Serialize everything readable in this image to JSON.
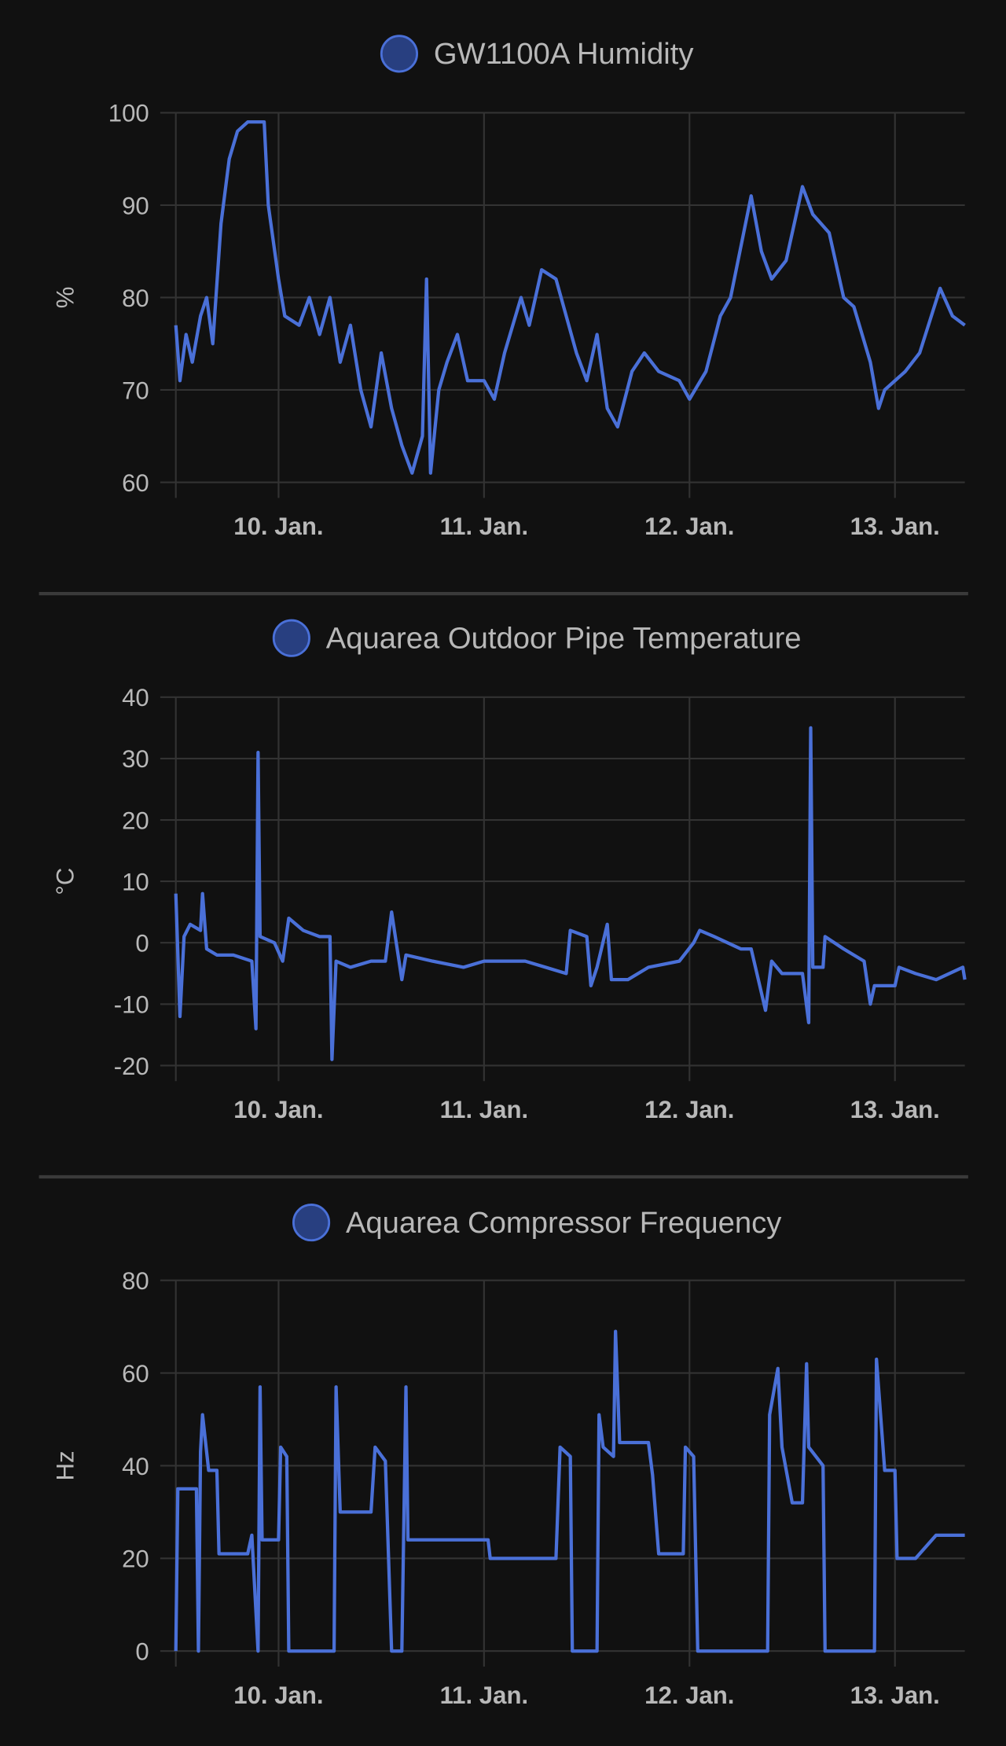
{
  "chart_data": [
    {
      "type": "line",
      "y_label": "%",
      "xlim": [
        9.5,
        13.34
      ],
      "xticks": [
        {
          "value": 10,
          "label": "10. Jan."
        },
        {
          "value": 11,
          "label": "11. Jan."
        },
        {
          "value": 12,
          "label": "12. Jan."
        },
        {
          "value": 13,
          "label": "13. Jan."
        }
      ],
      "ylim": [
        60,
        100
      ],
      "yticks": [
        60,
        70,
        80,
        90,
        100
      ],
      "grid": true,
      "x": [
        9.5,
        9.52,
        9.55,
        9.58,
        9.62,
        9.65,
        9.68,
        9.72,
        9.76,
        9.8,
        9.85,
        9.93,
        9.95,
        10.0,
        10.03,
        10.1,
        10.15,
        10.2,
        10.25,
        10.3,
        10.35,
        10.4,
        10.45,
        10.5,
        10.55,
        10.6,
        10.65,
        10.7,
        10.72,
        10.74,
        10.78,
        10.82,
        10.87,
        10.92,
        11.0,
        11.05,
        11.1,
        11.18,
        11.22,
        11.28,
        11.35,
        11.45,
        11.5,
        11.55,
        11.6,
        11.65,
        11.72,
        11.78,
        11.85,
        11.95,
        12.0,
        12.08,
        12.15,
        12.2,
        12.3,
        12.35,
        12.4,
        12.47,
        12.55,
        12.6,
        12.68,
        12.75,
        12.8,
        12.88,
        12.92,
        12.95,
        13.05,
        13.12,
        13.22,
        13.28,
        13.34
      ],
      "series": [
        {
          "name": "GW1100A Humidity",
          "color": "#4a70d8",
          "values": [
            77,
            71,
            76,
            73,
            78,
            80,
            75,
            88,
            95,
            98,
            99,
            99,
            90,
            82,
            78,
            77,
            80,
            76,
            80,
            73,
            77,
            70,
            66,
            74,
            68,
            64,
            61,
            65,
            82,
            61,
            70,
            73,
            76,
            71,
            71,
            69,
            74,
            80,
            77,
            83,
            82,
            74,
            71,
            76,
            68,
            66,
            72,
            74,
            72,
            71,
            69,
            72,
            78,
            80,
            91,
            85,
            82,
            84,
            92,
            89,
            87,
            80,
            79,
            73,
            68,
            70,
            72,
            74,
            81,
            78,
            77
          ]
        }
      ]
    },
    {
      "type": "line",
      "y_label": "°C",
      "xlim": [
        9.5,
        13.34
      ],
      "xticks": [
        {
          "value": 10,
          "label": "10. Jan."
        },
        {
          "value": 11,
          "label": "11. Jan."
        },
        {
          "value": 12,
          "label": "12. Jan."
        },
        {
          "value": 13,
          "label": "13. Jan."
        }
      ],
      "ylim": [
        -20,
        40
      ],
      "yticks": [
        -20,
        -10,
        0,
        10,
        20,
        30,
        40
      ],
      "grid": true,
      "x": [
        9.5,
        9.52,
        9.54,
        9.57,
        9.62,
        9.63,
        9.65,
        9.7,
        9.78,
        9.87,
        9.89,
        9.9,
        9.91,
        9.98,
        10.02,
        10.05,
        10.12,
        10.2,
        10.25,
        10.26,
        10.28,
        10.35,
        10.45,
        10.52,
        10.55,
        10.6,
        10.62,
        10.75,
        10.9,
        11.0,
        11.2,
        11.3,
        11.4,
        11.42,
        11.5,
        11.52,
        11.55,
        11.6,
        11.62,
        11.7,
        11.8,
        11.95,
        12.02,
        12.05,
        12.12,
        12.25,
        12.3,
        12.37,
        12.4,
        12.45,
        12.55,
        12.58,
        12.59,
        12.6,
        12.65,
        12.66,
        12.75,
        12.85,
        12.88,
        12.9,
        13.0,
        13.02,
        13.1,
        13.2,
        13.33,
        13.34
      ],
      "series": [
        {
          "name": "Aquarea Outdoor Pipe Temperature",
          "color": "#4a70d8",
          "values": [
            8,
            -12,
            1,
            3,
            2,
            8,
            -1,
            -2,
            -2,
            -3,
            -14,
            31,
            1,
            0,
            -3,
            4,
            2,
            1,
            1,
            -19,
            -3,
            -4,
            -3,
            -3,
            5,
            -6,
            -2,
            -3,
            -4,
            -3,
            -3,
            -4,
            -5,
            2,
            1,
            -7,
            -4,
            3,
            -6,
            -6,
            -4,
            -3,
            0,
            2,
            1,
            -1,
            -1,
            -11,
            -3,
            -5,
            -5,
            -13,
            35,
            -4,
            -4,
            1,
            -1,
            -3,
            -10,
            -7,
            -7,
            -4,
            -5,
            -6,
            -4,
            -6
          ]
        }
      ]
    },
    {
      "type": "line",
      "y_label": "Hz",
      "xlim": [
        9.5,
        13.34
      ],
      "xticks": [
        {
          "value": 10,
          "label": "10. Jan."
        },
        {
          "value": 11,
          "label": "11. Jan."
        },
        {
          "value": 12,
          "label": "12. Jan."
        },
        {
          "value": 13,
          "label": "13. Jan."
        }
      ],
      "ylim": [
        0,
        80
      ],
      "yticks": [
        0,
        20,
        40,
        60,
        80
      ],
      "grid": true,
      "x": [
        9.5,
        9.51,
        9.6,
        9.61,
        9.62,
        9.63,
        9.66,
        9.7,
        9.71,
        9.85,
        9.87,
        9.9,
        9.91,
        9.92,
        10.0,
        10.01,
        10.04,
        10.05,
        10.27,
        10.28,
        10.3,
        10.45,
        10.47,
        10.52,
        10.55,
        10.6,
        10.62,
        10.63,
        11.02,
        11.03,
        11.35,
        11.37,
        11.42,
        11.43,
        11.55,
        11.56,
        11.58,
        11.63,
        11.64,
        11.66,
        11.8,
        11.82,
        11.85,
        11.97,
        11.98,
        12.02,
        12.04,
        12.38,
        12.39,
        12.43,
        12.45,
        12.5,
        12.55,
        12.57,
        12.58,
        12.65,
        12.66,
        12.9,
        12.91,
        12.93,
        12.95,
        13.0,
        13.01,
        13.1,
        13.2,
        13.34
      ],
      "series": [
        {
          "name": "Aquarea Compressor Frequency",
          "color": "#4a70d8",
          "values": [
            0,
            35,
            35,
            0,
            43,
            51,
            39,
            39,
            21,
            21,
            25,
            0,
            57,
            24,
            24,
            44,
            42,
            0,
            0,
            57,
            30,
            30,
            44,
            41,
            0,
            0,
            57,
            24,
            24,
            20,
            20,
            44,
            42,
            0,
            0,
            51,
            44,
            42,
            69,
            45,
            45,
            38,
            21,
            21,
            44,
            42,
            0,
            0,
            51,
            61,
            44,
            32,
            32,
            62,
            44,
            40,
            0,
            0,
            63,
            51,
            39,
            39,
            20,
            20,
            25,
            25
          ]
        }
      ]
    }
  ]
}
